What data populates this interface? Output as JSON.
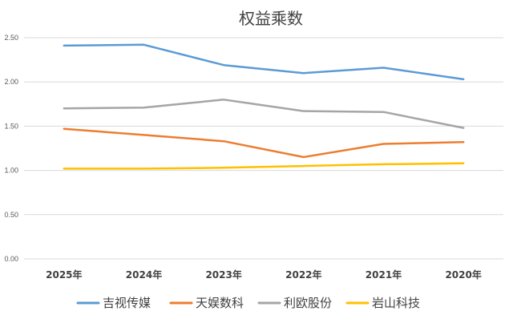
{
  "chart_data": {
    "type": "line",
    "title": "权益乘数",
    "xlabel": "",
    "ylabel": "",
    "categories": [
      "2025年",
      "2024年",
      "2023年",
      "2022年",
      "2021年",
      "2020年"
    ],
    "ylim": [
      0,
      2.5
    ],
    "yticks": [
      "0.00",
      "0.50",
      "1.00",
      "1.50",
      "2.00",
      "2.50"
    ],
    "grid": true,
    "legend_position": "bottom",
    "series": [
      {
        "name": "吉视传媒",
        "color": "#5b9bd5",
        "values": [
          2.41,
          2.42,
          2.19,
          2.1,
          2.16,
          2.03
        ]
      },
      {
        "name": "天娱数科",
        "color": "#ed7d31",
        "values": [
          1.47,
          1.4,
          1.33,
          1.15,
          1.3,
          1.32
        ]
      },
      {
        "name": "利欧股份",
        "color": "#a5a5a5",
        "values": [
          1.7,
          1.71,
          1.8,
          1.67,
          1.66,
          1.48
        ]
      },
      {
        "name": "岩山科技",
        "color": "#ffc000",
        "values": [
          1.02,
          1.02,
          1.03,
          1.05,
          1.07,
          1.08
        ]
      }
    ]
  }
}
